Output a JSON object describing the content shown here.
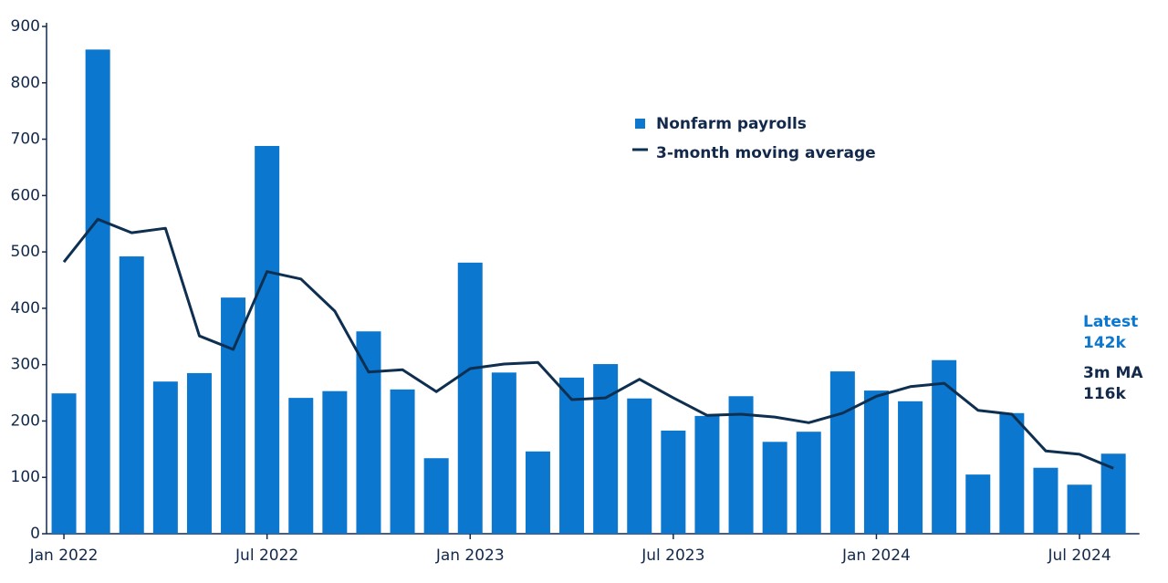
{
  "chart_data": {
    "type": "bar",
    "categories": [
      "Jan 2022",
      null,
      null,
      null,
      null,
      null,
      "Jul 2022",
      null,
      null,
      null,
      null,
      null,
      "Jan 2023",
      null,
      null,
      null,
      null,
      null,
      "Jul 2023",
      null,
      null,
      null,
      null,
      null,
      "Jan 2024",
      null,
      null,
      null,
      null,
      null,
      "Jul 2024",
      null
    ],
    "series": [
      {
        "name": "Nonfarm payrolls",
        "type": "bar",
        "color": "#0b77cf",
        "values": [
          249,
          859,
          492,
          270,
          285,
          419,
          688,
          241,
          253,
          359,
          256,
          134,
          481,
          286,
          146,
          277,
          301,
          240,
          183,
          209,
          244,
          163,
          181,
          288,
          254,
          235,
          308,
          105,
          214,
          117,
          87,
          142
        ]
      },
      {
        "name": "3-month moving average",
        "type": "line",
        "color": "#0e2f50",
        "values": [
          482,
          558,
          534,
          542,
          351,
          327,
          465,
          452,
          395,
          287,
          291,
          252,
          293,
          301,
          304,
          238,
          241,
          274,
          241,
          210,
          212,
          207,
          197,
          214,
          244,
          261,
          267,
          219,
          212,
          147,
          141,
          116
        ]
      }
    ],
    "ylim": [
      0,
      900
    ],
    "yticks": [
      0,
      100,
      200,
      300,
      400,
      500,
      600,
      700,
      800,
      900
    ],
    "grid": false,
    "legend": "top",
    "annotations": [
      {
        "text": "Latest",
        "color": "#0b77cf"
      },
      {
        "text": "142k",
        "color": "#0b77cf"
      },
      {
        "text": "3m MA",
        "color": "#13294b"
      },
      {
        "text": "116k",
        "color": "#13294b"
      }
    ]
  }
}
